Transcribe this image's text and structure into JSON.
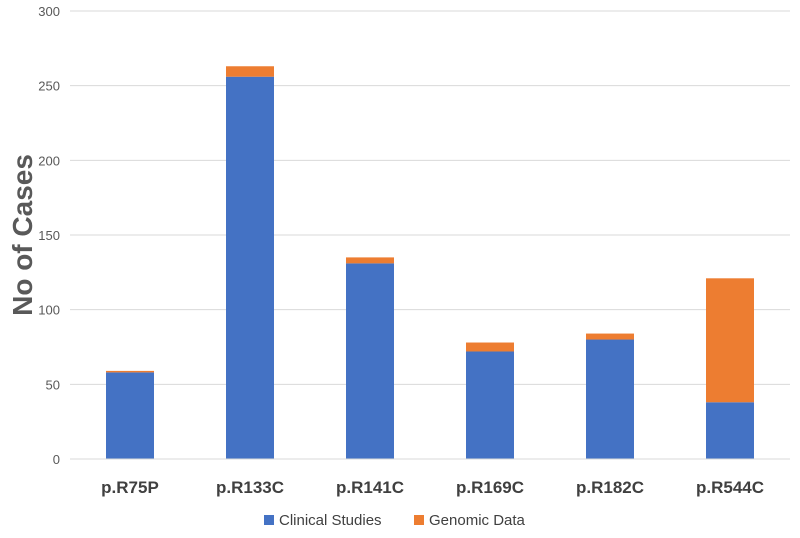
{
  "chart_data": {
    "type": "bar",
    "stacked": true,
    "categories": [
      "p.R75P",
      "p.R133C",
      "p.R141C",
      "p.R169C",
      "p.R182C",
      "p.R544C"
    ],
    "series": [
      {
        "name": "Clinical Studies",
        "values": [
          58,
          256,
          131,
          72,
          80,
          38
        ],
        "color": "#4472C4"
      },
      {
        "name": "Genomic Data",
        "values": [
          1,
          7,
          4,
          6,
          4,
          83
        ],
        "color": "#ED7D31"
      }
    ],
    "ylabel": "No of  Cases",
    "xlabel": "",
    "ylim": [
      0,
      300
    ],
    "yticks": [
      0,
      50,
      100,
      150,
      200,
      250,
      300
    ],
    "grid": true,
    "legend": "bottom-center"
  }
}
